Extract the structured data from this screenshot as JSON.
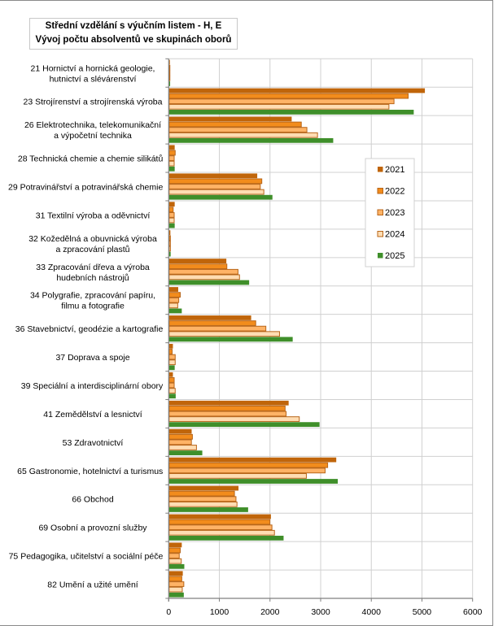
{
  "chart_data": {
    "type": "bar",
    "orientation": "horizontal",
    "title": "Střední vzdělání s výučním listem - H, E",
    "subtitle": "Vývoj počtu absolventů ve skupinách oborů",
    "xlabel": "",
    "ylabel": "",
    "xlim": [
      0,
      6000
    ],
    "xticks": [
      0,
      1000,
      2000,
      3000,
      4000,
      5000,
      6000
    ],
    "grid": true,
    "legend_position": "right",
    "categories": [
      [
        "21 Hornictví a hornická geologie,",
        "hutnictví a slévárenství"
      ],
      [
        "23 Strojírenství a strojírenská výroba"
      ],
      [
        "26 Elektrotechnika, telekomunikační",
        "a výpočetní technika"
      ],
      [
        "28 Technická chemie a chemie silikátů"
      ],
      [
        "29 Potravinářství a potravinářská chemie"
      ],
      [
        "31 Textilní výroba a oděvnictví"
      ],
      [
        "32 Kožedělná a obuvnická výroba",
        "a zpracování plastů"
      ],
      [
        "33 Zpracování dřeva a výroba",
        "hudebních nástrojů"
      ],
      [
        "34 Polygrafie, zpracování papíru,",
        "filmu a fotografie"
      ],
      [
        "36 Stavebnictví, geodézie a kartografie"
      ],
      [
        "37 Doprava a spoje"
      ],
      [
        "39 Speciální a interdisciplinární obory"
      ],
      [
        "41 Zemědělství a lesnictví"
      ],
      [
        "53 Zdravotnictví"
      ],
      [
        "65 Gastronomie, hotelnictví a turismus"
      ],
      [
        "66 Obchod"
      ],
      [
        "69 Osobní a provozní služby"
      ],
      [
        "75 Pedagogika, učitelství a sociální péče"
      ],
      [
        "82 Umění a užité umění"
      ]
    ],
    "series": [
      {
        "name": "2021",
        "color": "#C0650A",
        "border": "#C0650A",
        "values": [
          15,
          5050,
          2420,
          110,
          1740,
          110,
          25,
          1130,
          180,
          1620,
          75,
          75,
          2360,
          445,
          3300,
          1370,
          2010,
          250,
          270
        ]
      },
      {
        "name": "2022",
        "color": "#F28C1C",
        "border": "#B8661A",
        "values": [
          15,
          4720,
          2610,
          120,
          1830,
          80,
          25,
          1140,
          220,
          1710,
          60,
          100,
          2290,
          460,
          3130,
          1290,
          1990,
          220,
          250
        ]
      },
      {
        "name": "2023",
        "color": "#FFB366",
        "border": "#B8661A",
        "values": [
          15,
          4440,
          2720,
          100,
          1800,
          100,
          25,
          1360,
          190,
          1910,
          120,
          100,
          2310,
          440,
          3080,
          1320,
          2030,
          200,
          290
        ]
      },
      {
        "name": "2024",
        "color": "#FFDDB3",
        "border": "#B8661A",
        "values": [
          15,
          4340,
          2930,
          100,
          1870,
          100,
          25,
          1390,
          170,
          2180,
          120,
          120,
          2570,
          540,
          2710,
          1340,
          2080,
          240,
          260
        ]
      },
      {
        "name": "2025",
        "color": "#3F8F2A",
        "border": "#3F8F2A",
        "values": [
          20,
          4830,
          3240,
          110,
          2040,
          110,
          30,
          1580,
          250,
          2440,
          110,
          130,
          2970,
          655,
          3330,
          1560,
          2260,
          300,
          290
        ]
      }
    ]
  }
}
